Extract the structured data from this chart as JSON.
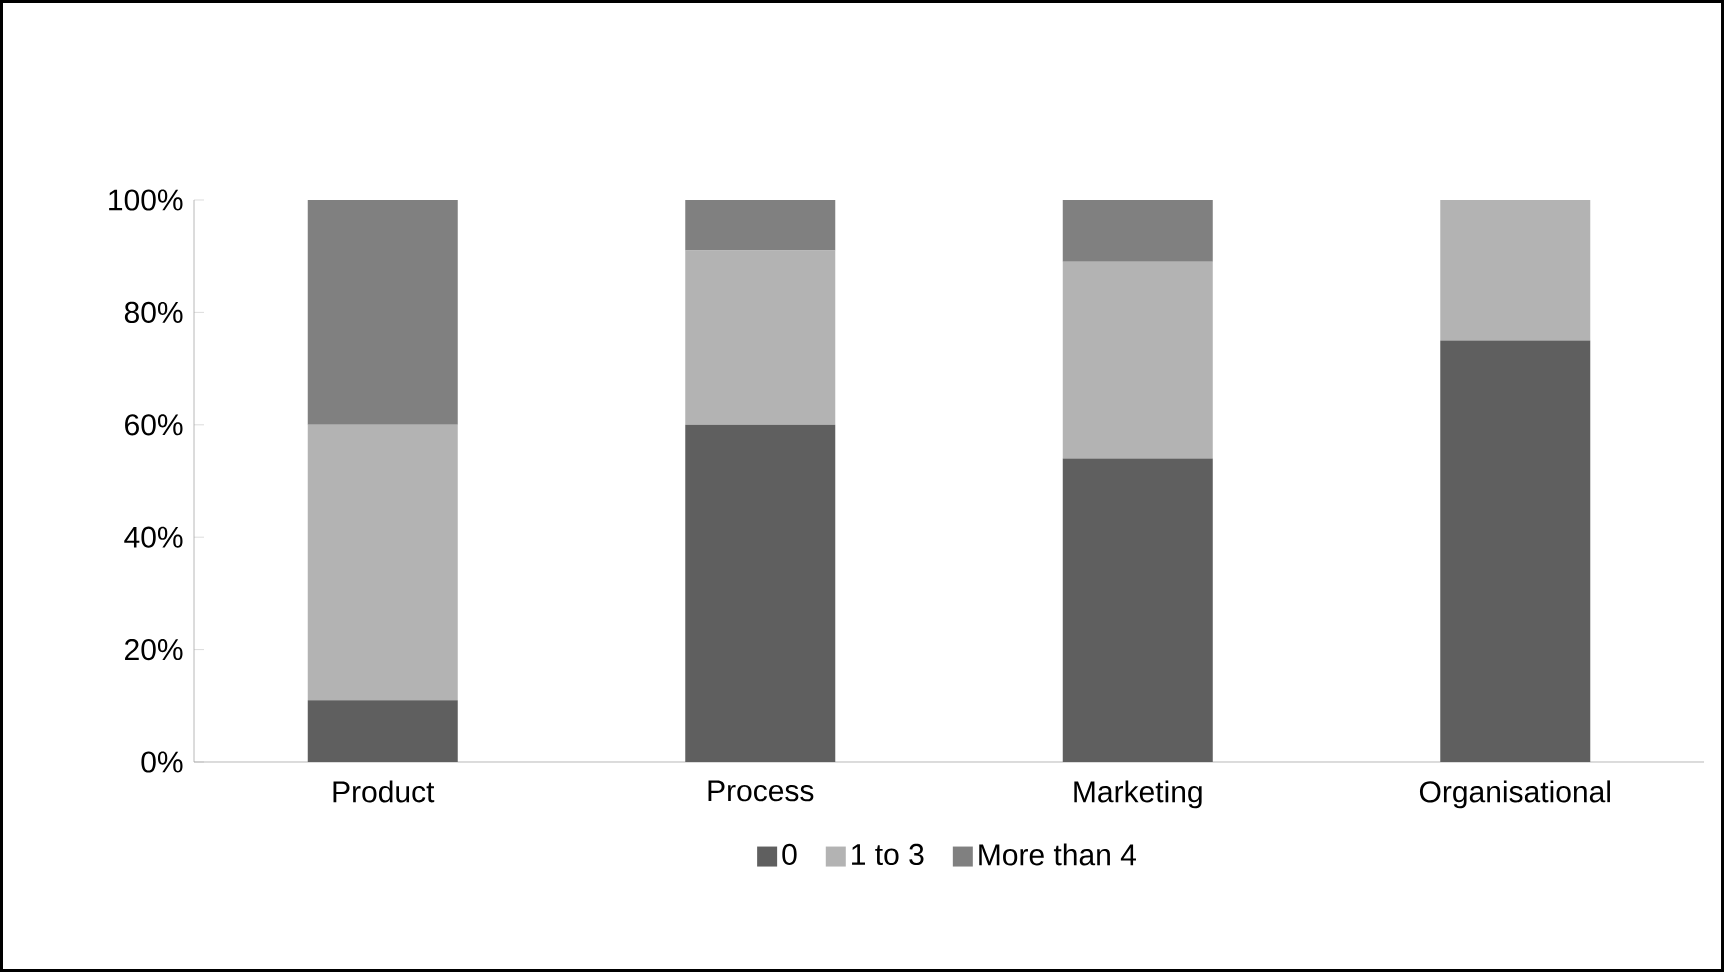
{
  "chart_data": {
    "type": "bar",
    "stacked": true,
    "categories": [
      "Product",
      "Process",
      "Marketing",
      "Organisational"
    ],
    "series": [
      {
        "name": "0",
        "color": "#5f5f5f",
        "values": [
          11,
          60,
          54,
          75
        ]
      },
      {
        "name": "1 to 3",
        "color": "#b3b3b3",
        "values": [
          49,
          31,
          35,
          25
        ]
      },
      {
        "name": "More than 4",
        "color": "#808080",
        "values": [
          40,
          9,
          11,
          0
        ]
      }
    ],
    "ylim": [
      0,
      100
    ],
    "yticks": [
      {
        "value": 0,
        "label": "0%"
      },
      {
        "value": 20,
        "label": "20%"
      },
      {
        "value": 40,
        "label": "40%"
      },
      {
        "value": 60,
        "label": "60%"
      },
      {
        "value": 80,
        "label": "80%"
      },
      {
        "value": 100,
        "label": "100%"
      }
    ],
    "legend": "bottom"
  }
}
